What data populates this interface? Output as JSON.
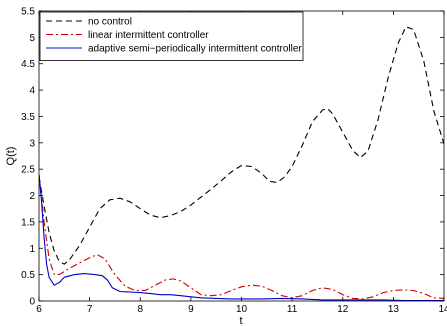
{
  "chart_data": {
    "type": "line",
    "title": "",
    "xlabel": "t",
    "ylabel": "Q(t)",
    "xlim": [
      6,
      14
    ],
    "ylim": [
      0,
      5.5
    ],
    "x_ticks": [
      6,
      7,
      8,
      9,
      10,
      11,
      12,
      13,
      14
    ],
    "y_ticks": [
      0,
      0.5,
      1,
      1.5,
      2,
      2.5,
      3,
      3.5,
      4,
      4.5,
      5,
      5.5
    ],
    "x_tick_labels": [
      "6",
      "7",
      "8",
      "9",
      "10",
      "11",
      "12",
      "13",
      "14"
    ],
    "y_tick_labels": [
      "0",
      "0.5",
      "1",
      "1.5",
      "2",
      "2.5",
      "3",
      "3.5",
      "4",
      "4.5",
      "5",
      "5.5"
    ],
    "grid": false,
    "legend_position": "top-left",
    "series": [
      {
        "name": "no control",
        "color": "#000000",
        "style": "dashed",
        "points": [
          [
            6.0,
            2.35
          ],
          [
            6.1,
            1.8
          ],
          [
            6.2,
            1.3
          ],
          [
            6.3,
            0.95
          ],
          [
            6.4,
            0.75
          ],
          [
            6.5,
            0.7
          ],
          [
            6.6,
            0.78
          ],
          [
            6.8,
            1.05
          ],
          [
            7.0,
            1.4
          ],
          [
            7.2,
            1.75
          ],
          [
            7.4,
            1.92
          ],
          [
            7.6,
            1.95
          ],
          [
            7.8,
            1.88
          ],
          [
            8.0,
            1.75
          ],
          [
            8.2,
            1.63
          ],
          [
            8.4,
            1.58
          ],
          [
            8.6,
            1.62
          ],
          [
            8.8,
            1.7
          ],
          [
            9.0,
            1.82
          ],
          [
            9.2,
            1.97
          ],
          [
            9.4,
            2.12
          ],
          [
            9.6,
            2.28
          ],
          [
            9.8,
            2.45
          ],
          [
            10.0,
            2.57
          ],
          [
            10.2,
            2.55
          ],
          [
            10.4,
            2.42
          ],
          [
            10.55,
            2.27
          ],
          [
            10.7,
            2.25
          ],
          [
            10.85,
            2.35
          ],
          [
            11.0,
            2.55
          ],
          [
            11.2,
            2.95
          ],
          [
            11.4,
            3.4
          ],
          [
            11.6,
            3.62
          ],
          [
            11.7,
            3.65
          ],
          [
            11.8,
            3.55
          ],
          [
            12.0,
            3.2
          ],
          [
            12.2,
            2.85
          ],
          [
            12.35,
            2.72
          ],
          [
            12.5,
            2.85
          ],
          [
            12.7,
            3.45
          ],
          [
            12.9,
            4.25
          ],
          [
            13.1,
            4.9
          ],
          [
            13.25,
            5.2
          ],
          [
            13.4,
            5.15
          ],
          [
            13.6,
            4.55
          ],
          [
            13.8,
            3.6
          ],
          [
            14.0,
            2.98
          ]
        ]
      },
      {
        "name": "linear intermittent controller",
        "color": "#cc0000",
        "style": "dashdot",
        "points": [
          [
            6.0,
            2.4
          ],
          [
            6.1,
            1.5
          ],
          [
            6.2,
            0.8
          ],
          [
            6.3,
            0.5
          ],
          [
            6.4,
            0.5
          ],
          [
            6.6,
            0.62
          ],
          [
            6.8,
            0.72
          ],
          [
            7.0,
            0.82
          ],
          [
            7.15,
            0.88
          ],
          [
            7.3,
            0.8
          ],
          [
            7.5,
            0.5
          ],
          [
            7.7,
            0.28
          ],
          [
            7.9,
            0.2
          ],
          [
            8.1,
            0.2
          ],
          [
            8.3,
            0.3
          ],
          [
            8.5,
            0.4
          ],
          [
            8.65,
            0.42
          ],
          [
            8.8,
            0.38
          ],
          [
            9.0,
            0.25
          ],
          [
            9.2,
            0.12
          ],
          [
            9.4,
            0.1
          ],
          [
            9.6,
            0.12
          ],
          [
            9.8,
            0.2
          ],
          [
            10.0,
            0.27
          ],
          [
            10.2,
            0.3
          ],
          [
            10.4,
            0.28
          ],
          [
            10.6,
            0.2
          ],
          [
            10.8,
            0.1
          ],
          [
            11.0,
            0.06
          ],
          [
            11.2,
            0.1
          ],
          [
            11.4,
            0.2
          ],
          [
            11.6,
            0.25
          ],
          [
            11.8,
            0.22
          ],
          [
            12.0,
            0.12
          ],
          [
            12.2,
            0.05
          ],
          [
            12.4,
            0.04
          ],
          [
            12.6,
            0.08
          ],
          [
            12.8,
            0.16
          ],
          [
            13.0,
            0.2
          ],
          [
            13.2,
            0.21
          ],
          [
            13.4,
            0.2
          ],
          [
            13.6,
            0.14
          ],
          [
            13.8,
            0.06
          ],
          [
            14.0,
            0.05
          ]
        ]
      },
      {
        "name": "adaptive semi−periodically intermittent controller",
        "color": "#0000cc",
        "style": "solid",
        "points": [
          [
            6.0,
            2.4
          ],
          [
            6.05,
            1.9
          ],
          [
            6.1,
            1.2
          ],
          [
            6.15,
            0.7
          ],
          [
            6.2,
            0.45
          ],
          [
            6.3,
            0.3
          ],
          [
            6.4,
            0.35
          ],
          [
            6.5,
            0.45
          ],
          [
            6.7,
            0.5
          ],
          [
            6.9,
            0.52
          ],
          [
            7.1,
            0.5
          ],
          [
            7.25,
            0.48
          ],
          [
            7.35,
            0.4
          ],
          [
            7.45,
            0.25
          ],
          [
            7.6,
            0.18
          ],
          [
            7.8,
            0.17
          ],
          [
            8.0,
            0.16
          ],
          [
            8.2,
            0.14
          ],
          [
            8.4,
            0.12
          ],
          [
            8.6,
            0.12
          ],
          [
            8.8,
            0.1
          ],
          [
            9.0,
            0.08
          ],
          [
            9.2,
            0.06
          ],
          [
            9.5,
            0.05
          ],
          [
            9.8,
            0.04
          ],
          [
            10.0,
            0.04
          ],
          [
            10.4,
            0.04
          ],
          [
            10.8,
            0.05
          ],
          [
            11.2,
            0.04
          ],
          [
            11.6,
            0.02
          ],
          [
            12.0,
            0.02
          ],
          [
            12.4,
            0.02
          ],
          [
            12.8,
            0.02
          ],
          [
            13.2,
            0.01
          ],
          [
            13.6,
            0.01
          ],
          [
            14.0,
            0.01
          ]
        ]
      }
    ]
  }
}
